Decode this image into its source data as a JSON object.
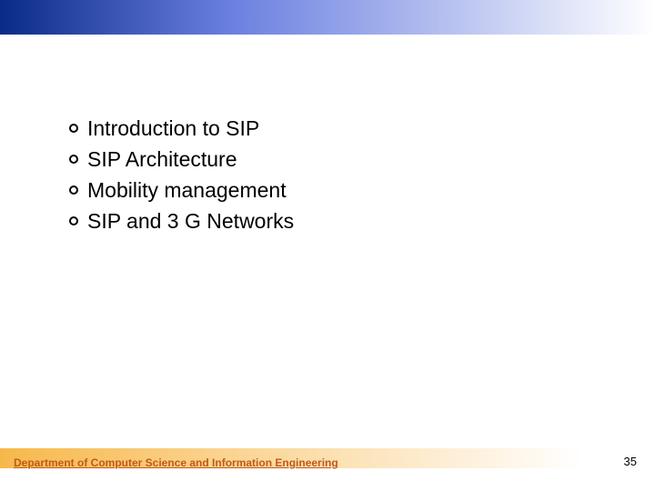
{
  "topBar": {
    "gradient": {
      "from": "#0a2b88",
      "via": "#6a7fe0",
      "to": "#ffffff"
    }
  },
  "bullets": {
    "items": [
      {
        "label": "Introduction to SIP"
      },
      {
        "label": "SIP Architecture"
      },
      {
        "label": "Mobility management"
      },
      {
        "label": "SIP and 3 G Networks"
      }
    ],
    "bullet_border_color": "#000000",
    "text_color": "#000000",
    "fontsize": 23
  },
  "footer": {
    "dept_text": "Department of Computer Science and Information Engineering",
    "dept_color": "#c05a1a",
    "bar_gradient": {
      "from": "#f7b84a",
      "to": "#ffffff"
    },
    "page_number": "35"
  },
  "background_color": "#ffffff"
}
